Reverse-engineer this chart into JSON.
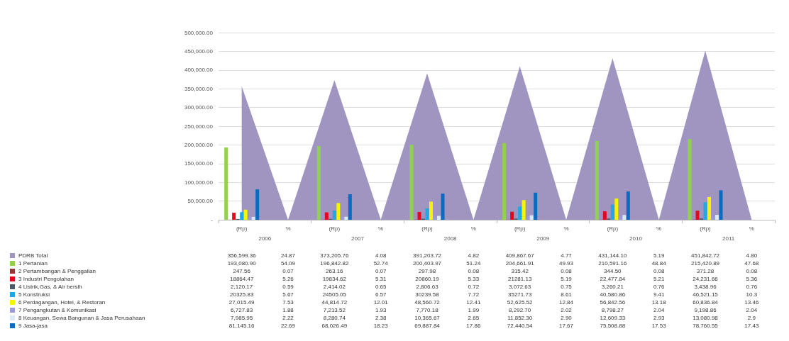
{
  "chart_data": {
    "type": "bar",
    "categories": [
      "(Rp)",
      "%",
      "(Rp)",
      "%",
      "(Rp)",
      "%",
      "(Rp)",
      "%",
      "(Rp)",
      "%",
      "(Rp)",
      "%"
    ],
    "annotations": [
      "2006",
      "2007",
      "2008",
      "2009",
      "2010",
      "2011"
    ],
    "ylim": [
      0,
      500000
    ],
    "yticks": [
      {
        "value": 0,
        "label": "-"
      },
      {
        "value": 50000,
        "label": "50,000.00"
      },
      {
        "value": 100000,
        "label": "100,000.00"
      },
      {
        "value": 150000,
        "label": "150,000.00"
      },
      {
        "value": 200000,
        "label": "200,000.00"
      },
      {
        "value": 250000,
        "label": "250,000.00"
      },
      {
        "value": 300000,
        "label": "300,000.00"
      },
      {
        "value": 350000,
        "label": "350,000.00"
      },
      {
        "value": 400000,
        "label": "400,000.00"
      },
      {
        "value": 450000,
        "label": "450,000.00"
      },
      {
        "value": 500000,
        "label": "500,000.00"
      }
    ],
    "grid": "y",
    "legend": "bottom left",
    "marker": "none",
    "series": [
      {
        "name": "PDRB Total",
        "type": "area",
        "color": "#a094c0",
        "values": [
          356599.36,
          24.87,
          373205.76,
          4.08,
          391203.72,
          4.82,
          409867.67,
          4.77,
          431144.1,
          5.19,
          451842.72,
          4.8
        ],
        "value_labels": [
          "356,599.36",
          "24.87",
          "373,205.76",
          "4.08",
          "391,203.72",
          "4.82",
          "409,867.67",
          "4.77",
          "431,144.10",
          "5.19",
          "451,842.72",
          "4.80"
        ]
      },
      {
        "name": "1 Pertanian",
        "color": "#92d050",
        "values": [
          193080.9,
          54.09,
          196842.82,
          52.74,
          200403.97,
          51.24,
          204661.91,
          49.93,
          210591.16,
          48.84,
          215420.89,
          47.68
        ],
        "value_labels": [
          "193,080.90",
          "54.09",
          "196,842.82",
          "52.74",
          "200,403.97",
          "51.24",
          "204,661.91",
          "49.93",
          "210,591.16",
          "48.84",
          "215,420.89",
          "47.68"
        ]
      },
      {
        "name": "2 Pertambangan & Penggalian",
        "color": "#953735",
        "values": [
          247.56,
          0.07,
          263.16,
          0.07,
          297.98,
          0.08,
          315.42,
          0.08,
          344.5,
          0.08,
          371.28,
          0.08
        ],
        "value_labels": [
          "247.56",
          "0.07",
          "263.16",
          "0.07",
          "297.98",
          "0.08",
          "315.42",
          "0.08",
          "344.50",
          "0.08",
          "371.28",
          "0.08"
        ]
      },
      {
        "name": "3 Industri Pengolahan",
        "color": "#e3081b",
        "values": [
          18864.47,
          5.26,
          19834.62,
          5.31,
          20860.19,
          5.33,
          21281.13,
          5.19,
          22477.84,
          5.21,
          24231.66,
          5.36
        ],
        "value_labels": [
          "18864.47",
          "5.26",
          "19834.62",
          "5.31",
          "20860.19",
          "5.33",
          "21281.13",
          "5.19",
          "22,477.84",
          "5.21",
          "24,231.66",
          "5.36"
        ]
      },
      {
        "name": "4 Listrik,Gas, & Air bersih",
        "color": "#4a5a6a",
        "values": [
          2120.17,
          0.59,
          2414.02,
          0.65,
          2806.63,
          0.72,
          3072.63,
          0.75,
          3260.21,
          0.76,
          3438.96,
          0.76
        ],
        "value_labels": [
          "2,120.17",
          "0.59",
          "2,414.02",
          "0.65",
          "2,806.63",
          "0.72",
          "3,072.63",
          "0.75",
          "3,260.21",
          "0.76",
          "3,438.96",
          "0.76"
        ]
      },
      {
        "name": "5 Konstruksi",
        "color": "#20a8e0",
        "values": [
          20325.83,
          5.67,
          24505.05,
          6.57,
          30239.58,
          7.72,
          35271.73,
          8.61,
          40580.86,
          9.41,
          46521.15,
          10.3
        ],
        "value_labels": [
          "20325.83",
          "5.67",
          "24505.05",
          "6.57",
          "30239.58",
          "7.72",
          "35271.73",
          "8.61",
          "40,580.86",
          "9.41",
          "46,521.15",
          "10.3"
        ]
      },
      {
        "name": "6 Perdagangan, Hotel, & Restoran",
        "color": "#f5f500",
        "values": [
          27015.49,
          7.53,
          44814.72,
          12.01,
          48560.72,
          12.41,
          52625.52,
          12.84,
          56842.56,
          13.18,
          60836.84,
          13.46
        ],
        "value_labels": [
          "27,015.49",
          "7.53",
          "44,814.72",
          "12.01",
          "48,560.72",
          "12.41",
          "52,625.52",
          "12.84",
          "56,842.56",
          "13.18",
          "60,836.84",
          "13.46"
        ]
      },
      {
        "name": "7 Pengangkutan & Komunikasi",
        "color": "#9b9bdc",
        "values": [
          6727.83,
          1.88,
          7213.52,
          1.93,
          7770.18,
          1.99,
          8292.7,
          2.02,
          8798.27,
          2.04,
          9198.86,
          2.04
        ],
        "value_labels": [
          "6,727.83",
          "1.88",
          "7,213.52",
          "1.93",
          "7,770.18",
          "1.99",
          "8,292.70",
          "2.02",
          "8,798.27",
          "2.04",
          "9,198.86",
          "2.04"
        ]
      },
      {
        "name": "8 Keuangan, Sewa Bangunan & Jasa Perusahaan",
        "color": "#dce9f5",
        "values": [
          7985.95,
          2.22,
          8280.74,
          2.38,
          10365.67,
          2.65,
          11852.3,
          2.9,
          12609.33,
          2.93,
          13080.98,
          2.9
        ],
        "value_labels": [
          "7,985.95",
          "2.22",
          "8,280.74",
          "2.38",
          "10,365.67",
          "2.65",
          "11,852.30",
          "2.90",
          "12,609.33",
          "2.93",
          "13,080.98",
          "2.9"
        ]
      },
      {
        "name": "9 Jasa-jasa",
        "color": "#0a6bc0",
        "values": [
          81145.16,
          22.69,
          68026.49,
          18.23,
          69887.84,
          17.86,
          72440.54,
          17.67,
          75508.88,
          17.53,
          78760.55,
          17.43
        ],
        "value_labels": [
          "81,145.16",
          "22.69",
          "68,026.49",
          "18.23",
          "69,887.84",
          "17.86",
          "72,440.54",
          "17.67",
          "75,508.88",
          "17.53",
          "78,760.55",
          "17.43"
        ]
      }
    ]
  }
}
